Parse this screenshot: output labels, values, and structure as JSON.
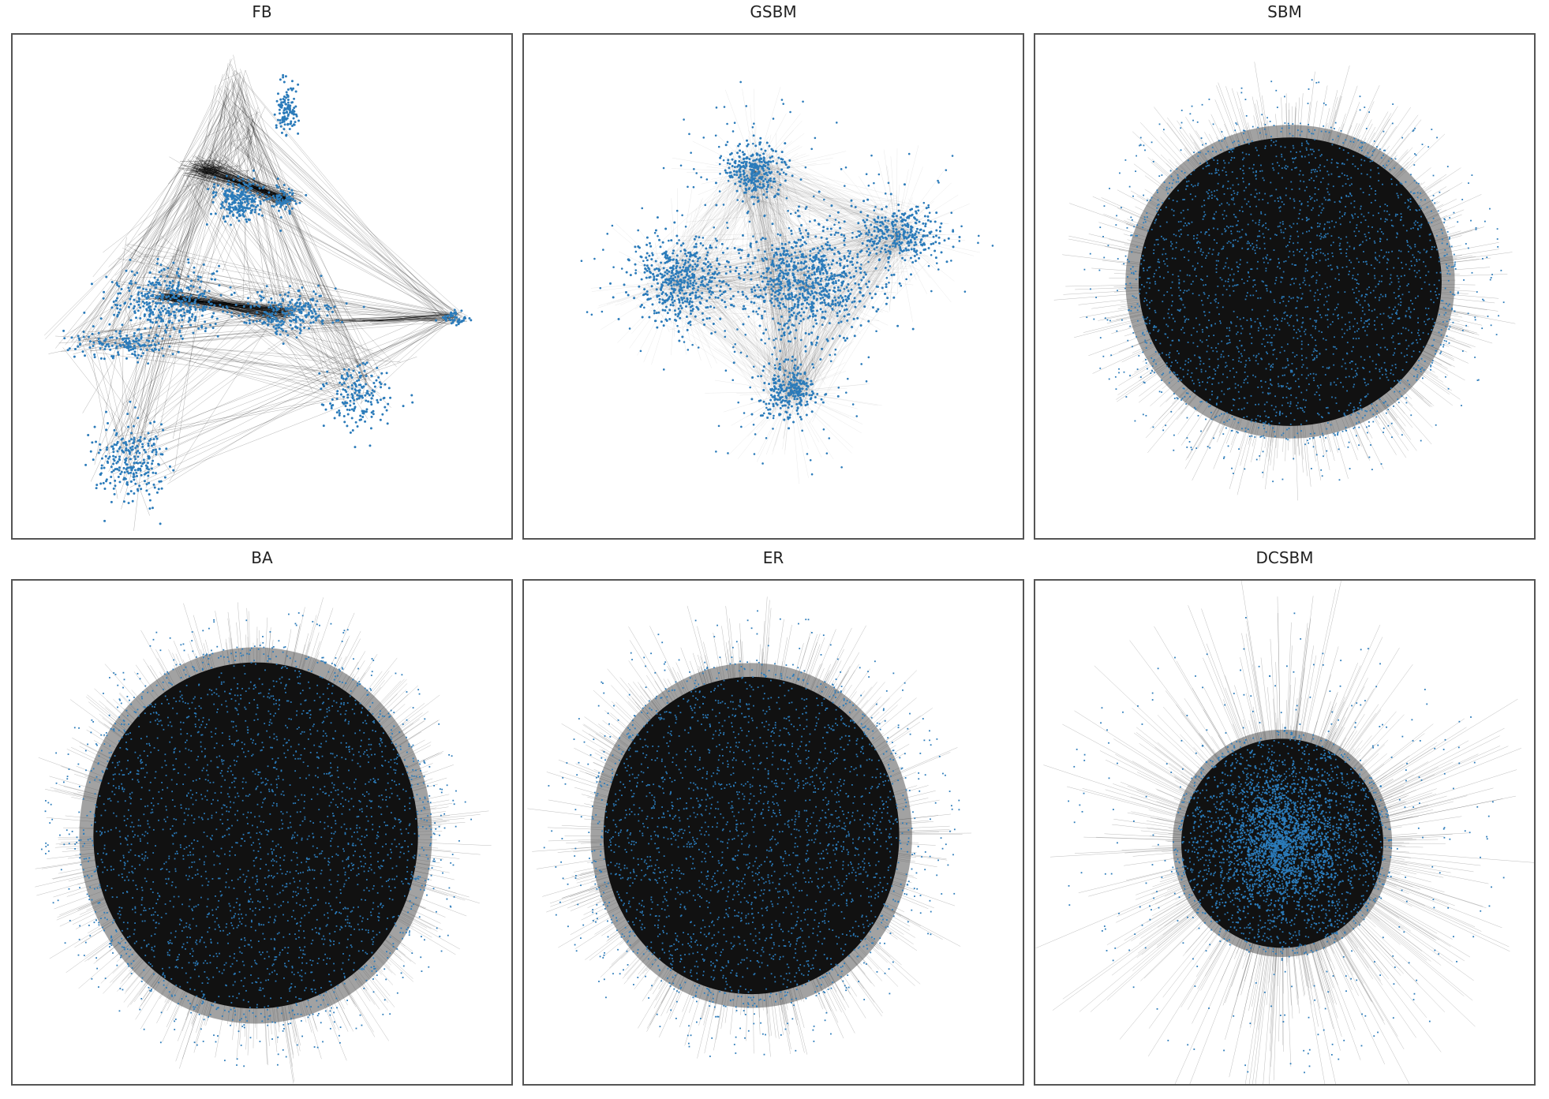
{
  "figure": {
    "panels": [
      {
        "title": "FB",
        "layout": "communities-sparse",
        "node_color": "#2b7bba",
        "edge_color": "#000000"
      },
      {
        "title": "GSBM",
        "layout": "five-clusters",
        "node_color": "#2b7bba",
        "edge_color": "#000000"
      },
      {
        "title": "SBM",
        "layout": "dense-ellipse",
        "node_color": "#2b7bba",
        "edge_color": "#000000"
      },
      {
        "title": "BA",
        "layout": "dense-disc",
        "node_color": "#2b7bba",
        "edge_color": "#000000"
      },
      {
        "title": "ER",
        "layout": "dense-disc",
        "node_color": "#2b7bba",
        "edge_color": "#000000"
      },
      {
        "title": "DCSBM",
        "layout": "hub-core",
        "node_color": "#2b7bba",
        "edge_color": "#000000"
      }
    ]
  }
}
